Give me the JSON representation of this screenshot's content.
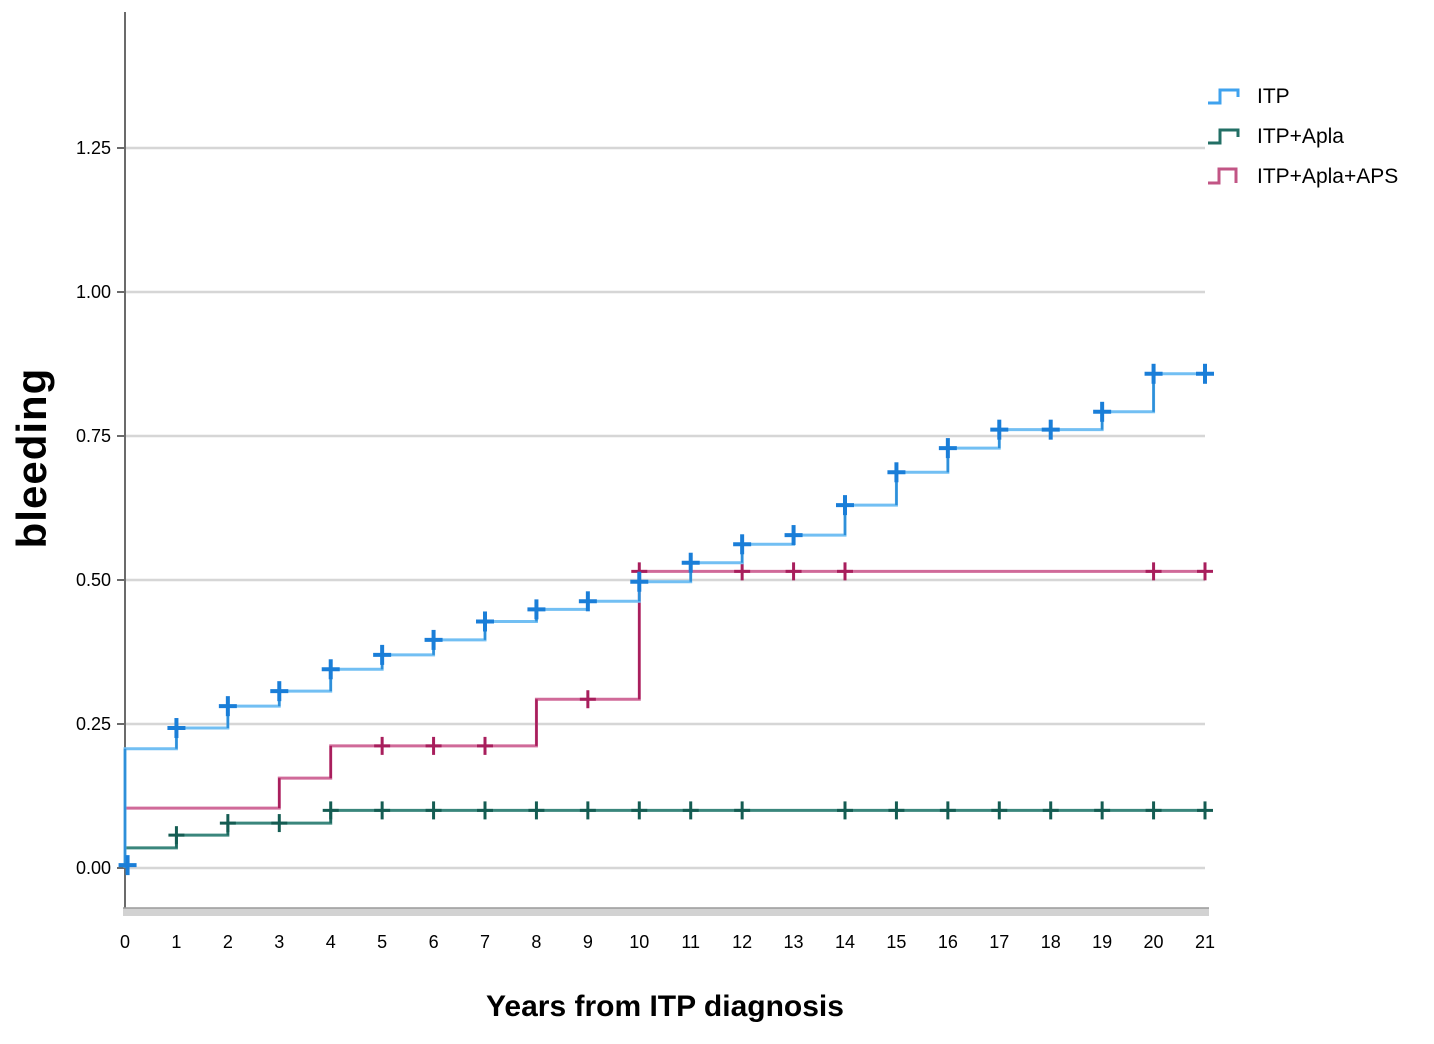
{
  "chart_data": {
    "type": "line",
    "subtype": "kaplan-meier-step",
    "title": "",
    "xlabel": "Years from ITP diagnosis",
    "ylabel": "bleeding",
    "xlim": [
      0,
      21
    ],
    "ylim": [
      0,
      1.25
    ],
    "grid": "horizontal",
    "legend_position": "top-right",
    "x_ticks": [
      0,
      1,
      2,
      3,
      4,
      5,
      6,
      7,
      8,
      9,
      10,
      11,
      12,
      13,
      14,
      15,
      16,
      17,
      18,
      19,
      20,
      21
    ],
    "y_ticks": [
      "0.00",
      "0.25",
      "0.50",
      "0.75",
      "1.00",
      "1.25"
    ],
    "y_tick_values": [
      0,
      0.25,
      0.5,
      0.75,
      1.0,
      1.25
    ],
    "axis_colors": {
      "gridline": "#D6D6D6",
      "y_axis": "#6B6B6B",
      "x_axis_band": "#D2D2D2",
      "x_axis_edge": "#9A9A9A"
    },
    "series": [
      {
        "label": "ITP",
        "color": "#72BFF3",
        "edge_color": "#2E8FD9",
        "marker_color": "#1A7ED8",
        "legend_color": "#3FA2EE",
        "legend_glyph": "step-up-half",
        "end_x": 21,
        "points": [
          [
            0,
            0
          ],
          [
            0,
            0.207
          ],
          [
            1,
            0.243
          ],
          [
            2,
            0.281
          ],
          [
            3,
            0.307
          ],
          [
            4,
            0.345
          ],
          [
            5,
            0.37
          ],
          [
            6,
            0.396
          ],
          [
            7,
            0.428
          ],
          [
            8,
            0.449
          ],
          [
            9,
            0.463
          ],
          [
            10,
            0.497
          ],
          [
            11,
            0.53
          ],
          [
            12,
            0.562
          ],
          [
            13,
            0.578
          ],
          [
            14,
            0.63
          ],
          [
            15,
            0.687
          ],
          [
            16,
            0.729
          ],
          [
            17,
            0.761
          ],
          [
            19,
            0.792
          ],
          [
            20,
            0.858
          ]
        ],
        "censors": [
          [
            0.05,
            0.005
          ],
          [
            1,
            0.243
          ],
          [
            2,
            0.281
          ],
          [
            3,
            0.307
          ],
          [
            4,
            0.345
          ],
          [
            5,
            0.37
          ],
          [
            6,
            0.396
          ],
          [
            7,
            0.428
          ],
          [
            8,
            0.449
          ],
          [
            9,
            0.463
          ],
          [
            10,
            0.497
          ],
          [
            11,
            0.53
          ],
          [
            12,
            0.562
          ],
          [
            13,
            0.578
          ],
          [
            14,
            0.63
          ],
          [
            15,
            0.687
          ],
          [
            16,
            0.729
          ],
          [
            17,
            0.761
          ],
          [
            18,
            0.761
          ],
          [
            19,
            0.792
          ],
          [
            20,
            0.858
          ],
          [
            21,
            0.858
          ]
        ]
      },
      {
        "label": "ITP+Apla",
        "color": "#3A867C",
        "edge_color": "#1E6A60",
        "marker_color": "#145C52",
        "legend_color": "#226F65",
        "legend_glyph": "step-up-half",
        "end_x": 21,
        "points": [
          [
            0,
            0.012
          ],
          [
            0,
            0.035
          ],
          [
            1,
            0.057
          ],
          [
            2,
            0.078
          ],
          [
            4,
            0.1
          ]
        ],
        "censors": [
          [
            1,
            0.057
          ],
          [
            2,
            0.078
          ],
          [
            3,
            0.078
          ],
          [
            4,
            0.1
          ],
          [
            5,
            0.1
          ],
          [
            6,
            0.1
          ],
          [
            7,
            0.1
          ],
          [
            8,
            0.1
          ],
          [
            9,
            0.1
          ],
          [
            10,
            0.1
          ],
          [
            11,
            0.1
          ],
          [
            12,
            0.1
          ],
          [
            14,
            0.1
          ],
          [
            15,
            0.1
          ],
          [
            16,
            0.1
          ],
          [
            17,
            0.1
          ],
          [
            18,
            0.1
          ],
          [
            19,
            0.1
          ],
          [
            20,
            0.1
          ],
          [
            21,
            0.1
          ]
        ]
      },
      {
        "label": "ITP+Apla+APS",
        "color": "#D06A99",
        "edge_color": "#A81E5C",
        "marker_color": "#A81E5C",
        "legend_color": "#C25585",
        "legend_glyph": "step-up-down",
        "end_x": 21,
        "points": [
          [
            0,
            0.03
          ],
          [
            0,
            0.104
          ],
          [
            3,
            0.156
          ],
          [
            4,
            0.212
          ],
          [
            8,
            0.293
          ],
          [
            10,
            0.515
          ]
        ],
        "censors": [
          [
            5,
            0.212
          ],
          [
            6,
            0.212
          ],
          [
            7,
            0.212
          ],
          [
            9,
            0.293
          ],
          [
            10,
            0.515
          ],
          [
            12,
            0.515
          ],
          [
            13,
            0.515
          ],
          [
            14,
            0.515
          ],
          [
            20,
            0.515
          ],
          [
            21,
            0.515
          ]
        ]
      }
    ]
  }
}
